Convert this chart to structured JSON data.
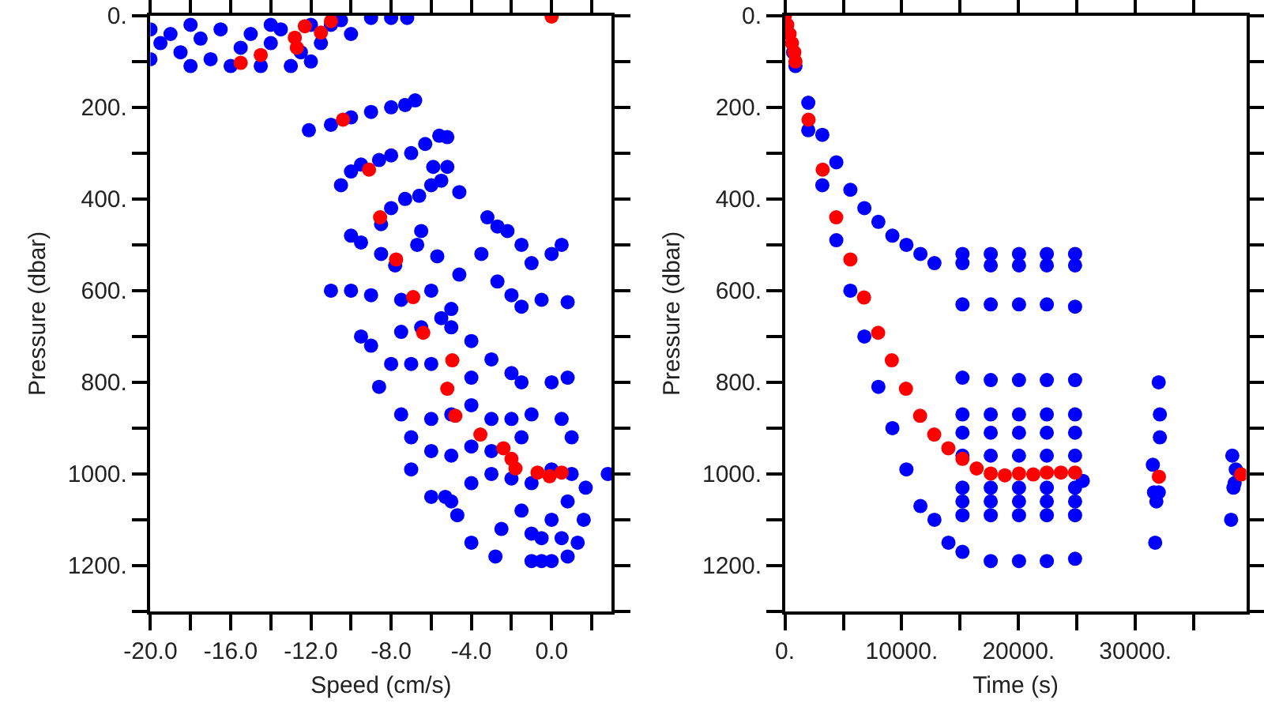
{
  "chart_data": [
    {
      "type": "scatter",
      "xlabel": "Speed (cm/s)",
      "ylabel": "Pressure (dbar)",
      "xlim": [
        -20,
        3
      ],
      "ylim": [
        1300,
        0
      ],
      "marker": "circle",
      "xticks": [
        {
          "value": -20,
          "label": "-20.0"
        },
        {
          "value": -18,
          "label": null
        },
        {
          "value": -16,
          "label": "-16.0"
        },
        {
          "value": -14,
          "label": null
        },
        {
          "value": -12,
          "label": "-12.0"
        },
        {
          "value": -10,
          "label": null
        },
        {
          "value": -8,
          "label": "-8.0"
        },
        {
          "value": -6,
          "label": null
        },
        {
          "value": -4,
          "label": "-4.0"
        },
        {
          "value": -2,
          "label": null
        },
        {
          "value": 0,
          "label": "0.0"
        },
        {
          "value": 2,
          "label": null
        }
      ],
      "yticks": [
        {
          "value": 0,
          "label": "0."
        },
        {
          "value": 100,
          "label": null
        },
        {
          "value": 200,
          "label": "200."
        },
        {
          "value": 300,
          "label": null
        },
        {
          "value": 400,
          "label": "400."
        },
        {
          "value": 500,
          "label": null
        },
        {
          "value": 600,
          "label": "600."
        },
        {
          "value": 700,
          "label": null
        },
        {
          "value": 800,
          "label": "800."
        },
        {
          "value": 900,
          "label": null
        },
        {
          "value": 1000,
          "label": "1000."
        },
        {
          "value": 1100,
          "label": null
        },
        {
          "value": 1200,
          "label": "1200."
        },
        {
          "value": 1300,
          "label": null
        }
      ],
      "series": [
        {
          "color": "#0000ff",
          "x": [
            -20,
            -20,
            -19.5,
            -19,
            -18.5,
            -18,
            -17.5,
            -17,
            -16.5,
            -16,
            -15.5,
            -15,
            -14.5,
            -14,
            -13.5,
            -13,
            -12.5,
            -12,
            -12,
            -11.5,
            -11,
            -10.5,
            -10,
            -9,
            -8,
            -7.2,
            -14,
            -18,
            -12.1,
            -11,
            -10,
            -9,
            -8,
            -7.3,
            -6.8,
            -10.5,
            -10,
            -9.5,
            -8.6,
            -8,
            -7,
            -6.3,
            -5.6,
            -5.2,
            -10,
            -9.5,
            -8.5,
            -8,
            -7.3,
            -6.6,
            -5.9,
            -6,
            -5.5,
            -5.2,
            -4.6,
            -8.5,
            -7.8,
            -6.7,
            -6.5,
            -5.7,
            -4.6,
            -3.5,
            -3.2,
            -2.7,
            -2.2,
            -1.5,
            -1,
            0.5,
            0,
            -11,
            -10,
            -9,
            -7.5,
            -6,
            -5,
            -4,
            -2.7,
            -2,
            -1.5,
            -0.5,
            0.8,
            -9.5,
            -9,
            -7.5,
            -6.5,
            -5.5,
            -5,
            -8,
            -8.6,
            -7,
            -6,
            -4,
            -3,
            -2,
            -1.5,
            0.8,
            0,
            -7.5,
            -7,
            -6,
            -5,
            -4,
            -3,
            -2,
            -1,
            0.5,
            1,
            -6,
            -5,
            -4,
            -3,
            -1.5,
            -7,
            -6,
            -5,
            -4,
            -3,
            -2,
            -1,
            0,
            1,
            1.7,
            2.8,
            -5.3,
            -4.7,
            -4,
            -2.5,
            -2.8,
            -1.5,
            -1,
            0,
            0.8,
            1.6,
            -0.5,
            0,
            0.8,
            1.3,
            -1,
            -0.5,
            0.5
          ],
          "values": [
            30,
            95,
            60,
            40,
            80,
            110,
            50,
            95,
            30,
            110,
            70,
            40,
            110,
            60,
            30,
            110,
            80,
            20,
            100,
            60,
            20,
            10,
            40,
            5,
            5,
            5,
            20,
            20,
            250,
            238,
            222,
            210,
            200,
            195,
            185,
            370,
            340,
            325,
            315,
            305,
            300,
            280,
            262,
            265,
            480,
            495,
            455,
            420,
            400,
            393,
            330,
            370,
            360,
            330,
            385,
            520,
            545,
            500,
            470,
            525,
            565,
            520,
            440,
            460,
            470,
            500,
            540,
            500,
            520,
            600,
            600,
            610,
            620,
            600,
            640,
            710,
            580,
            610,
            635,
            620,
            625,
            700,
            720,
            690,
            680,
            660,
            680,
            760,
            810,
            760,
            760,
            790,
            750,
            780,
            800,
            790,
            800,
            870,
            920,
            880,
            870,
            850,
            880,
            880,
            870,
            880,
            920,
            950,
            960,
            940,
            950,
            920,
            990,
            1050,
            1060,
            1020,
            1000,
            1010,
            1020,
            990,
            1000,
            1030,
            1000,
            1050,
            1090,
            1150,
            1120,
            1180,
            1080,
            1130,
            1100,
            1060,
            1100,
            1190,
            1190,
            1180,
            1150,
            1190,
            1140,
            1140
          ]
        },
        {
          "color": "#ff0000",
          "x": [
            0,
            -11,
            -11.5,
            -12.3,
            -12.8,
            -12.7,
            -14.5,
            -15.5,
            -10.4,
            -9.1,
            -8.55,
            -7.75,
            -6.9,
            -6.4,
            -4.95,
            -5.2,
            -4.8,
            -3.55,
            -2.4,
            -2,
            -1.8,
            -0.7,
            -0.1,
            0.5
          ],
          "values": [
            2,
            12,
            37,
            23,
            48,
            70,
            86,
            103,
            227,
            336,
            440,
            532,
            614,
            692,
            752,
            814,
            873,
            914,
            944,
            967,
            988,
            997,
            1005,
            997
          ]
        }
      ]
    },
    {
      "type": "scatter",
      "xlabel": "Time (s)",
      "ylabel": "Pressure (dbar)",
      "xlim": [
        0,
        39500
      ],
      "ylim": [
        1300,
        0
      ],
      "marker": "circle",
      "xticks": [
        {
          "value": 0,
          "label": "0."
        },
        {
          "value": 5000,
          "label": null
        },
        {
          "value": 10000,
          "label": "10000."
        },
        {
          "value": 15000,
          "label": null
        },
        {
          "value": 20000,
          "label": "20000."
        },
        {
          "value": 25000,
          "label": null
        },
        {
          "value": 30000,
          "label": "30000."
        },
        {
          "value": 35000,
          "label": null
        }
      ],
      "yticks": [
        {
          "value": 0,
          "label": "0."
        },
        {
          "value": 100,
          "label": null
        },
        {
          "value": 200,
          "label": "200."
        },
        {
          "value": 300,
          "label": null
        },
        {
          "value": 400,
          "label": "400."
        },
        {
          "value": 500,
          "label": null
        },
        {
          "value": 600,
          "label": "600."
        },
        {
          "value": 700,
          "label": null
        },
        {
          "value": 800,
          "label": "800."
        },
        {
          "value": 900,
          "label": null
        },
        {
          "value": 1000,
          "label": "1000."
        },
        {
          "value": 1100,
          "label": null
        },
        {
          "value": 1200,
          "label": "1200."
        },
        {
          "value": 1300,
          "label": null
        }
      ],
      "series": [
        {
          "color": "#0000ff",
          "x": [
            700,
            900,
            2000,
            2000,
            3200,
            3200,
            4400,
            4400,
            5600,
            5600,
            6800,
            6800,
            8000,
            8000,
            9200,
            9200,
            10400,
            10400,
            11600,
            11600,
            12800,
            12800,
            14000,
            15200,
            15200,
            17620,
            20040,
            22420,
            24840,
            15200,
            17620,
            20040,
            22420,
            24840,
            15200,
            17620,
            20040,
            22420,
            24840,
            15200,
            17620,
            20040,
            22420,
            24840,
            15200,
            17620,
            20040,
            22420,
            24840,
            15200,
            17620,
            20040,
            22420,
            24840,
            15200,
            17620,
            20040,
            22420,
            24840,
            15200,
            17620,
            20040,
            22420,
            24840,
            15200,
            17620,
            20040,
            22420,
            24840,
            15200,
            17620,
            20040,
            22420,
            24840,
            17620,
            20040,
            22420,
            24840,
            25500,
            31500,
            32000,
            32100,
            32100,
            32000,
            31800,
            31700,
            31600,
            38300,
            38600,
            38500,
            38400,
            38200
          ],
          "values": [
            80,
            110,
            190,
            250,
            260,
            370,
            320,
            490,
            380,
            600,
            420,
            700,
            450,
            810,
            480,
            900,
            500,
            990,
            520,
            1070,
            540,
            1100,
            1150,
            1170,
            520,
            520,
            520,
            520,
            520,
            540,
            545,
            545,
            545,
            545,
            630,
            630,
            630,
            630,
            635,
            790,
            795,
            795,
            795,
            795,
            870,
            870,
            870,
            870,
            870,
            910,
            910,
            910,
            910,
            910,
            960,
            960,
            960,
            960,
            960,
            1030,
            1030,
            1030,
            1030,
            1030,
            1060,
            1060,
            1060,
            1060,
            1060,
            1090,
            1090,
            1090,
            1090,
            1090,
            1190,
            1190,
            1190,
            1185,
            1015,
            980,
            800,
            870,
            920,
            1040,
            1060,
            1150,
            1040,
            960,
            990,
            1020,
            1030,
            1100
          ]
        },
        {
          "color": "#ff0000",
          "x": [
            0,
            200,
            400,
            600,
            800,
            900,
            2020,
            3230,
            4390,
            5600,
            6770,
            7980,
            9150,
            10360,
            11570,
            12780,
            13990,
            15200,
            16410,
            17620,
            18830,
            20040,
            21260,
            22420,
            23630,
            24840,
            32020,
            39060
          ],
          "values": [
            0,
            20,
            40,
            60,
            80,
            100,
            227,
            336,
            440,
            532,
            615,
            692,
            752,
            814,
            873,
            914,
            944,
            967,
            988,
            999,
            1003,
            999,
            1001,
            997,
            997,
            997,
            1006,
            1001
          ]
        }
      ]
    }
  ]
}
